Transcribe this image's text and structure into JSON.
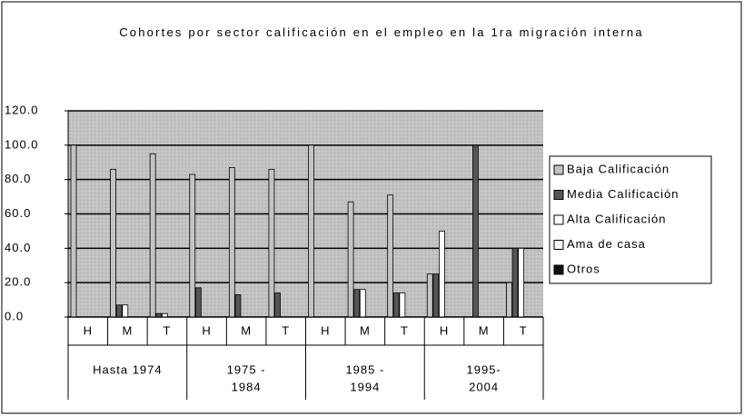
{
  "chart_data": {
    "type": "bar",
    "title": "Cohortes por sector calificación en el empleo en la 1ra migración interna",
    "categories": [
      "H",
      "M",
      "T",
      "H",
      "M",
      "T",
      "H",
      "M",
      "T",
      "H",
      "M",
      "T"
    ],
    "category_groups": [
      [
        "Hasta 1974"
      ],
      [
        "1975 -",
        "1984"
      ],
      [
        "1985 -",
        "1994"
      ],
      [
        "1995-",
        "2004"
      ]
    ],
    "series": [
      {
        "name": "Baja Calificación",
        "color": "#c4c4c4",
        "values": [
          100,
          86,
          95,
          83,
          87,
          86,
          100,
          67,
          71,
          25,
          0,
          20
        ]
      },
      {
        "name": "Media Calificación",
        "color": "#555555",
        "values": [
          0,
          7,
          2,
          17,
          13,
          14,
          0,
          16,
          14,
          25,
          100,
          40
        ]
      },
      {
        "name": "Alta Calificación",
        "color": "#ffffff",
        "values": [
          0,
          7,
          2,
          0,
          0,
          0,
          0,
          16,
          14,
          50,
          0,
          40
        ]
      },
      {
        "name": "Ama de casa",
        "color": "#f4f4f4",
        "values": [
          0,
          0,
          0,
          0,
          0,
          0,
          0,
          0,
          0,
          0,
          0,
          0
        ]
      },
      {
        "name": "Otros",
        "color": "#111111",
        "values": [
          0,
          0,
          0,
          0,
          0,
          0,
          0,
          0,
          0,
          0,
          0,
          0
        ]
      }
    ],
    "ylim": [
      0,
      120
    ],
    "yticks": [
      {
        "value": 0,
        "label": "0.0"
      },
      {
        "value": 20,
        "label": "20.0"
      },
      {
        "value": 40,
        "label": "40.0"
      },
      {
        "value": 60,
        "label": "60.0"
      },
      {
        "value": 80,
        "label": "80.0"
      },
      {
        "value": 100,
        "label": "100.0"
      },
      {
        "value": 120,
        "label": "120.0"
      }
    ],
    "grid": true,
    "legend": "right"
  }
}
